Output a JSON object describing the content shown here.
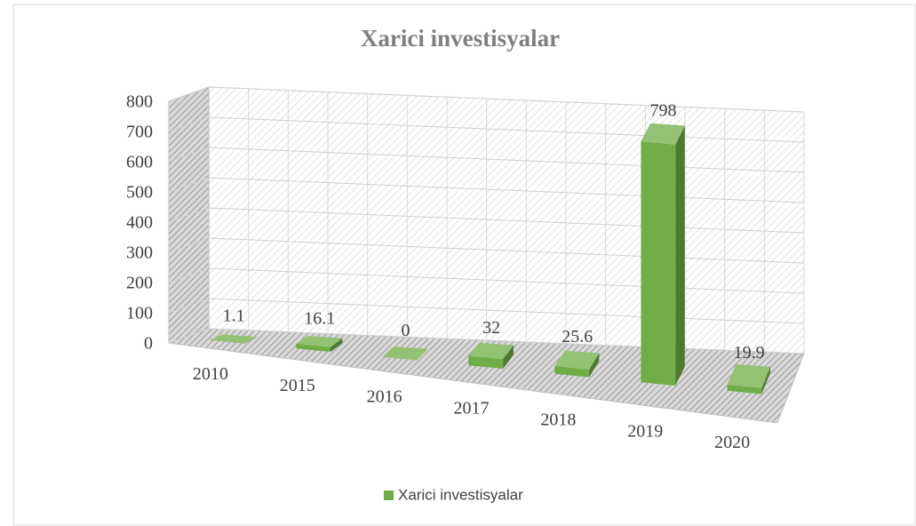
{
  "chart_data": {
    "type": "bar3d",
    "title": "Xarici investisyalar",
    "categories": [
      "2010",
      "2015",
      "2016",
      "2017",
      "2018",
      "2019",
      "2020"
    ],
    "series": [
      {
        "name": "Xarici investisyalar",
        "color": "#70ad47",
        "values": [
          1.1,
          16.1,
          0,
          32,
          25.6,
          798,
          19.9
        ]
      }
    ],
    "ylim": [
      0,
      800
    ],
    "yticks": [
      0,
      100,
      200,
      300,
      400,
      500,
      600,
      700,
      800
    ],
    "grid": true,
    "legend": "bottom"
  }
}
